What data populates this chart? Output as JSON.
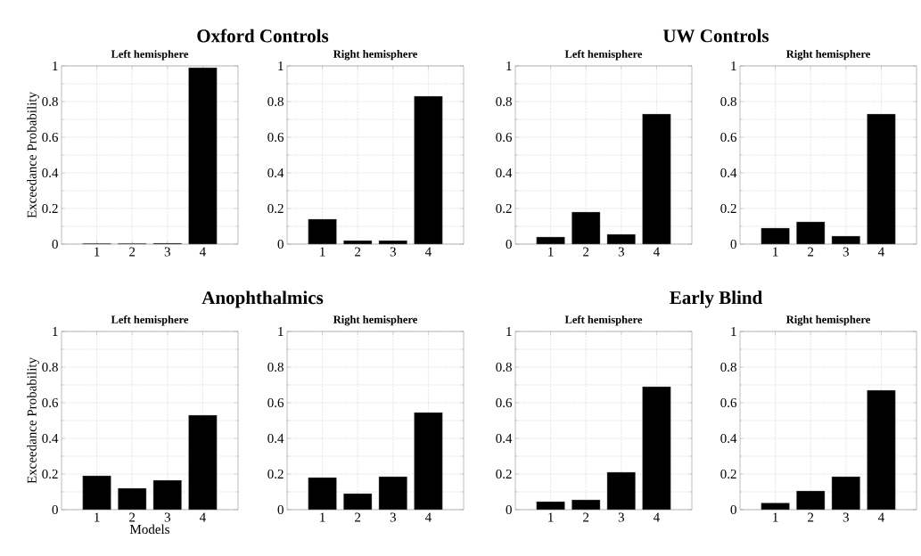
{
  "chart_data": [
    {
      "type": "bar",
      "title": "Oxford Controls",
      "subtitle": "Left hemisphere",
      "ylabel": "Exceedance Probability",
      "categories": [
        "1",
        "2",
        "3",
        "4"
      ],
      "values": [
        0.004,
        0.004,
        0.005,
        0.99
      ],
      "color": "#000000",
      "ylim": [
        0,
        1
      ],
      "yticks": [
        0,
        0.2,
        0.4,
        0.6,
        0.8,
        1
      ],
      "grid": true
    },
    {
      "type": "bar",
      "subtitle": "Right hemisphere",
      "categories": [
        "1",
        "2",
        "3",
        "4"
      ],
      "values": [
        0.14,
        0.02,
        0.02,
        0.83
      ],
      "color": "#000000",
      "ylim": [
        0,
        1
      ],
      "yticks": [
        0,
        0.2,
        0.4,
        0.6,
        0.8,
        1
      ],
      "grid": true
    },
    {
      "type": "bar",
      "title": "UW Controls",
      "subtitle": "Left hemisphere",
      "categories": [
        "1",
        "2",
        "3",
        "4"
      ],
      "values": [
        0.04,
        0.18,
        0.055,
        0.73
      ],
      "color": "#000000",
      "ylim": [
        0,
        1
      ],
      "yticks": [
        0,
        0.2,
        0.4,
        0.6,
        0.8,
        1
      ],
      "grid": true
    },
    {
      "type": "bar",
      "subtitle": "Right hemisphere",
      "categories": [
        "1",
        "2",
        "3",
        "4"
      ],
      "values": [
        0.09,
        0.125,
        0.045,
        0.73
      ],
      "color": "#000000",
      "ylim": [
        0,
        1
      ],
      "yticks": [
        0,
        0.2,
        0.4,
        0.6,
        0.8,
        1
      ],
      "grid": true
    },
    {
      "type": "bar",
      "title": "Anophthalmics",
      "subtitle": "Left hemisphere",
      "ylabel": "Exceedance Probability",
      "xlabel": "Models",
      "categories": [
        "1",
        "2",
        "3",
        "4"
      ],
      "values": [
        0.19,
        0.12,
        0.165,
        0.53
      ],
      "color": "#000000",
      "ylim": [
        0,
        1
      ],
      "yticks": [
        0,
        0.2,
        0.4,
        0.6,
        0.8,
        1
      ],
      "grid": true
    },
    {
      "type": "bar",
      "subtitle": "Right hemisphere",
      "categories": [
        "1",
        "2",
        "3",
        "4"
      ],
      "values": [
        0.18,
        0.09,
        0.185,
        0.545
      ],
      "color": "#000000",
      "ylim": [
        0,
        1
      ],
      "yticks": [
        0,
        0.2,
        0.4,
        0.6,
        0.8,
        1
      ],
      "grid": true
    },
    {
      "type": "bar",
      "title": "Early Blind",
      "subtitle": "Left hemisphere",
      "categories": [
        "1",
        "2",
        "3",
        "4"
      ],
      "values": [
        0.045,
        0.055,
        0.21,
        0.69
      ],
      "color": "#000000",
      "ylim": [
        0,
        1
      ],
      "yticks": [
        0,
        0.2,
        0.4,
        0.6,
        0.8,
        1
      ],
      "grid": true
    },
    {
      "type": "bar",
      "subtitle": "Right hemisphere",
      "categories": [
        "1",
        "2",
        "3",
        "4"
      ],
      "values": [
        0.038,
        0.105,
        0.185,
        0.67
      ],
      "color": "#000000",
      "ylim": [
        0,
        1
      ],
      "yticks": [
        0,
        0.2,
        0.4,
        0.6,
        0.8,
        1
      ],
      "grid": true
    }
  ]
}
